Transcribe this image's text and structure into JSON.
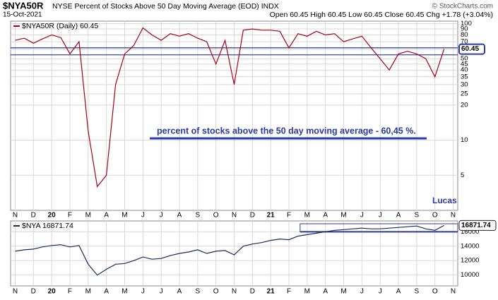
{
  "header": {
    "symbol": "$NYA50R",
    "description": "NYSE Percent of Stocks Above 50 Day Moving Average (EOD) INDX",
    "date": "15-Oct-2021",
    "quote": "Open 60.45 High 60.45 Low 60.45 Close 60.45 Chg +1.78 (+3.04%)",
    "source": "© StockCharts.com"
  },
  "chart_data": [
    {
      "type": "line",
      "legend": "$NYA50R (Daily) 60.45",
      "annotation": "percent of stocks above the 50 day moving average - 60,45 %.",
      "author": "Lucas",
      "log_scale": true,
      "grid": true,
      "last_label": "60.45",
      "categories": [
        "N",
        null,
        "D",
        null,
        "20",
        null,
        "F",
        null,
        "M",
        null,
        "A",
        null,
        "M",
        null,
        "J",
        null,
        "J",
        null,
        "A",
        null,
        "S",
        null,
        "O",
        null,
        "N",
        null,
        "D",
        null,
        "21",
        null,
        "F",
        null,
        "M",
        null,
        "A",
        null,
        "M",
        null,
        "J",
        null,
        "J",
        null,
        "A",
        null,
        "S",
        null,
        "O",
        null,
        "N"
      ],
      "series": [
        {
          "name": "$NYA50R",
          "color": "#a80010",
          "values": [
            72,
            75,
            68,
            74,
            80,
            76,
            55,
            70,
            12,
            4,
            5,
            30,
            55,
            65,
            92,
            80,
            72,
            82,
            78,
            82,
            75,
            70,
            45,
            72,
            30,
            88,
            90,
            88,
            88,
            86,
            62,
            82,
            78,
            86,
            80,
            82,
            70,
            74,
            78,
            62,
            50,
            40,
            55,
            58,
            55,
            50,
            35,
            60.45,
            null
          ]
        }
      ],
      "reference_lines": [
        62,
        54
      ],
      "reference_color": "#2a3a9a",
      "ylim": [
        2.5,
        105
      ],
      "yticks": [
        5,
        10,
        20,
        25,
        30,
        35,
        40,
        45,
        50,
        60,
        70,
        80,
        90,
        100
      ]
    },
    {
      "type": "line",
      "legend": "$NYA 16871.74",
      "grid": true,
      "last_label": "16871.74",
      "categories": [
        "N",
        null,
        "D",
        null,
        "20",
        null,
        "F",
        null,
        "M",
        null,
        "A",
        null,
        "M",
        null,
        "J",
        null,
        "J",
        null,
        "A",
        null,
        "S",
        null,
        "O",
        null,
        "N",
        null,
        "D",
        null,
        "21",
        null,
        "F",
        null,
        "M",
        null,
        "A",
        null,
        "M",
        null,
        "J",
        null,
        "J",
        null,
        "A",
        null,
        "S",
        null,
        "O",
        null,
        "N"
      ],
      "series": [
        {
          "name": "$NYA",
          "color": "#1a2a5a",
          "values": [
            13300,
            13500,
            13600,
            13900,
            14100,
            14200,
            13900,
            14100,
            11500,
            10000,
            10800,
            11500,
            11600,
            12000,
            12500,
            12200,
            12300,
            12700,
            13000,
            13200,
            13500,
            13000,
            13300,
            13400,
            12800,
            14000,
            14300,
            14500,
            14800,
            15000,
            14900,
            15400,
            15600,
            15800,
            16000,
            16200,
            16300,
            16400,
            16500,
            16400,
            16400,
            16500,
            16600,
            16700,
            16800,
            16400,
            16200,
            16871.74,
            null
          ]
        }
      ],
      "reference_lines": [
        16000
      ],
      "reference_color": "#2a3a9a",
      "ylim": [
        8500,
        17500
      ],
      "yticks": [
        10000,
        12000,
        14000,
        16000
      ]
    }
  ]
}
